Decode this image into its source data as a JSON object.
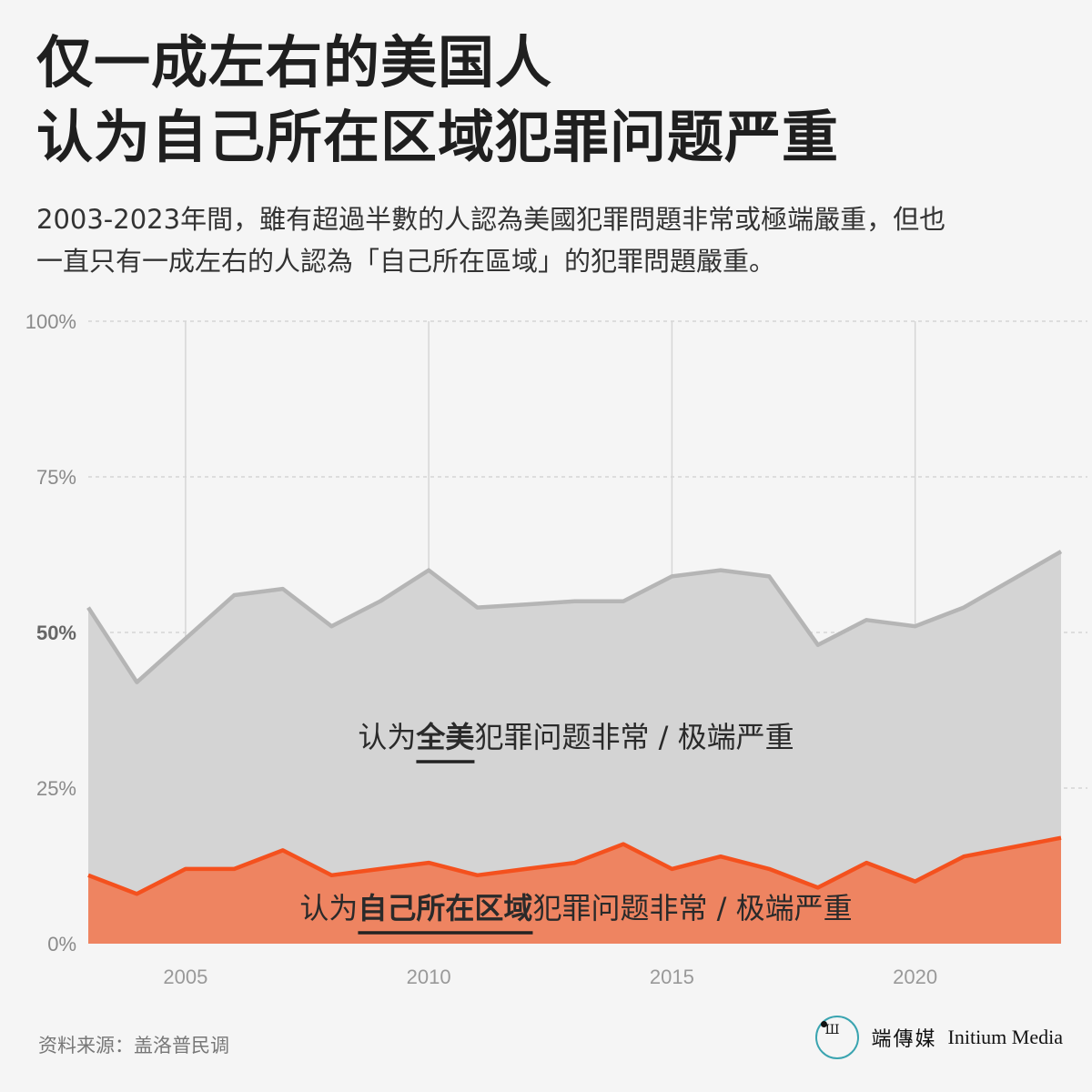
{
  "header": {
    "title_line1": "仅一成左右的美国人",
    "title_line2": "认为自己所在区域犯罪问题严重",
    "subtitle_line1": "2003-2023年間，雖有超過半數的人認為美國犯罪問題非常或極端嚴重，但也",
    "subtitle_line2": "一直只有一成左右的人認為「自己所在區域」的犯罪問題嚴重。"
  },
  "chart_data": {
    "type": "area",
    "x": [
      2003,
      2004,
      2005,
      2006,
      2007,
      2008,
      2009,
      2010,
      2011,
      2012,
      2013,
      2014,
      2015,
      2016,
      2017,
      2018,
      2019,
      2020,
      2021,
      2022,
      2023
    ],
    "series": [
      {
        "name": "认为全美犯罪问题非常 / 极端严重",
        "label_prefix": "认为",
        "label_emphasis": "全美",
        "label_suffix": "犯罪问题非常 / 极端严重",
        "color": "#b5b5b5",
        "fill": "#d4d4d4",
        "values": [
          54,
          42,
          49,
          56,
          57,
          51,
          55,
          60,
          54,
          54.5,
          55,
          55,
          59,
          60,
          59,
          48,
          52,
          51,
          54,
          58.5,
          63
        ]
      },
      {
        "name": "认为自己所在区域犯罪问题非常 / 极端严重",
        "label_prefix": "认为",
        "label_emphasis": "自己所在区域",
        "label_suffix": "犯罪问题非常 / 极端严重",
        "color": "#f4511e",
        "fill": "#ee8461",
        "values": [
          11,
          8,
          12,
          12,
          15,
          11,
          12,
          13,
          11,
          12,
          13,
          16,
          12,
          14,
          12,
          9,
          13,
          10,
          14,
          15.5,
          17
        ]
      }
    ],
    "xlim": [
      2003,
      2023
    ],
    "ylim": [
      0,
      100
    ],
    "x_ticks": [
      2005,
      2010,
      2015,
      2020
    ],
    "x_tick_labels": [
      "2005",
      "2010",
      "2015",
      "2020"
    ],
    "y_ticks": [
      0,
      25,
      50,
      75,
      100
    ],
    "y_tick_labels": [
      "0%",
      "25%",
      "50%",
      "75%",
      "100%"
    ],
    "grid": true
  },
  "footer": {
    "source": "资料来源：盖洛普民调",
    "brand_cn": "端傳媒",
    "brand_en": "Initium Media",
    "brand_glyph": "Ш"
  }
}
